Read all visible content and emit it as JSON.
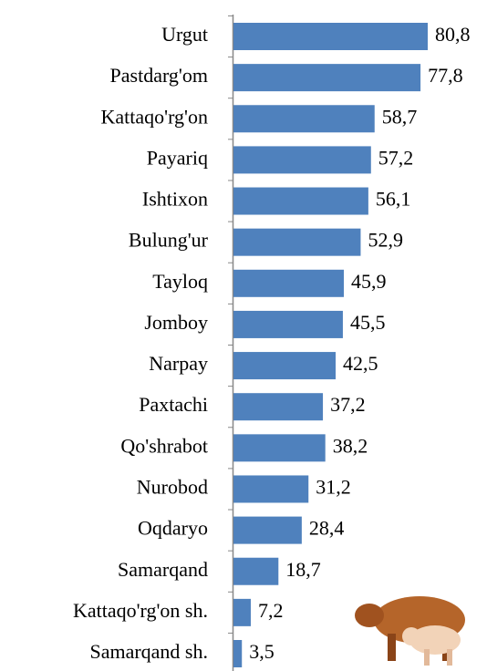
{
  "chart_data": {
    "type": "bar",
    "orientation": "horizontal",
    "categories": [
      "Urgut",
      "Pastdarg'om",
      "Kattaqo'rg'on",
      "Payariq",
      "Ishtixon",
      "Bulung'ur",
      "Tayloq",
      "Jomboy",
      "Narpay",
      "Paxtachi",
      "Qo'shrabot",
      "Nurobod",
      "Oqdaryo",
      "Samarqand",
      "Kattaqo'rg'on sh.",
      "Samarqand sh."
    ],
    "values": [
      80.8,
      77.8,
      58.7,
      57.2,
      56.1,
      52.9,
      45.9,
      45.5,
      42.5,
      37.2,
      38.2,
      31.2,
      28.4,
      18.7,
      7.2,
      3.5
    ],
    "value_labels": [
      "80,8",
      "77,8",
      "58,7",
      "57,2",
      "56,1",
      "52,9",
      "45,9",
      "45,5",
      "42,5",
      "37,2",
      "38,2",
      "31,2",
      "28,4",
      "18,7",
      "7,2",
      "3,5"
    ],
    "color": "#4f81bd"
  }
}
